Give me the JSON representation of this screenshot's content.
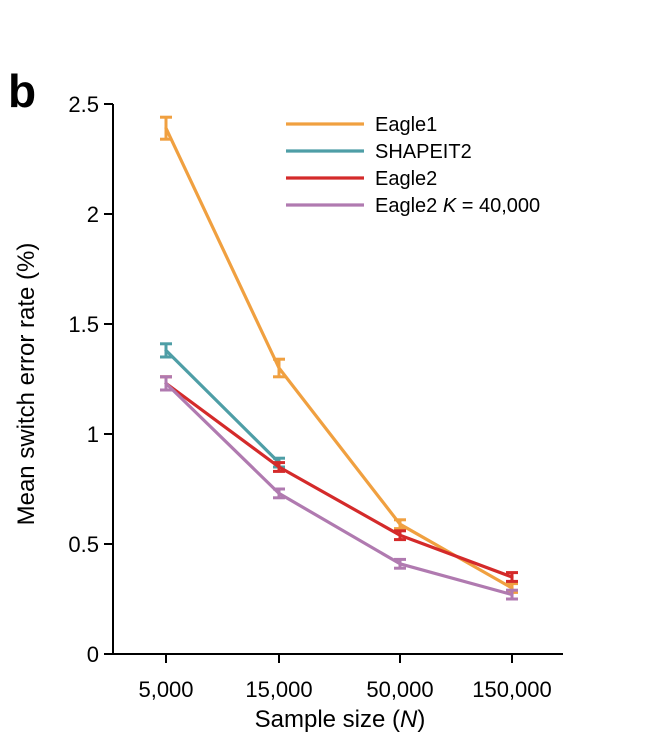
{
  "panel_label": "b",
  "chart_data": {
    "type": "line",
    "categories": [
      "5,000",
      "15,000",
      "50,000",
      "150,000"
    ],
    "xlabel": "Sample size",
    "xlabel_var": "N",
    "ylabel": "Mean switch error rate (%)",
    "ylim": [
      0,
      2.5
    ],
    "yticks": [
      0,
      0.5,
      1,
      1.5,
      2,
      2.5
    ],
    "ytick_labels": [
      "0",
      "0.5",
      "1",
      "1.5",
      "2",
      "2.5"
    ],
    "grid": false,
    "legend_position": "top-right",
    "series": [
      {
        "name": "Eagle1",
        "color": "#f0a040",
        "values": [
          2.39,
          1.3,
          0.59,
          0.3
        ],
        "errors": [
          0.05,
          0.04,
          0.02,
          0.02
        ]
      },
      {
        "name": "SHAPEIT2",
        "color": "#4e9ea6",
        "values": [
          1.38,
          0.87,
          null,
          null
        ],
        "errors": [
          0.03,
          0.02,
          null,
          null
        ]
      },
      {
        "name": "Eagle2",
        "color": "#d42a2a",
        "values": [
          1.23,
          0.85,
          0.54,
          0.35
        ],
        "errors": [
          0.03,
          0.02,
          0.02,
          0.02
        ]
      },
      {
        "name": "Eagle2",
        "name_var": "K",
        "name_suffix": " = 40,000",
        "color": "#b07ab0",
        "values": [
          1.23,
          0.73,
          0.41,
          0.27
        ],
        "errors": [
          0.03,
          0.02,
          0.02,
          0.02
        ]
      }
    ]
  }
}
